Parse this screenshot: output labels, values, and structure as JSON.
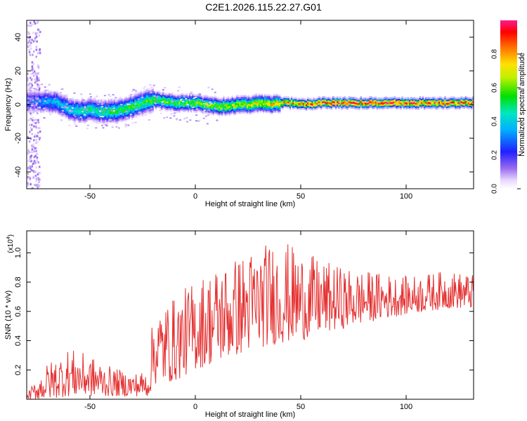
{
  "title": "C2E1.2026.115.22.27.G01",
  "chart_data": [
    {
      "type": "heatmap",
      "xlabel": "Height of straight line (km)",
      "ylabel": "Frequency (Hz)",
      "xlim": [
        -80,
        132
      ],
      "ylim": [
        -50,
        50
      ],
      "xticks": [
        -50,
        0,
        50,
        100
      ],
      "yticks": [
        -40,
        -20,
        0,
        20,
        40
      ],
      "colorbar": {
        "label": "Normalized spectral amplitude",
        "range": [
          0,
          1
        ],
        "ticks": [
          "0.0",
          "0.2",
          "0.4",
          "0.6",
          "0.8"
        ],
        "colormap": "rainbow (white, violet, blue, cyan, green, yellow, orange, red, magenta)"
      },
      "ridge": {
        "description": "dominant frequency vs height",
        "points": [
          [
            -72,
            2
          ],
          [
            -65,
            1
          ],
          [
            -60,
            -3
          ],
          [
            -55,
            -4
          ],
          [
            -50,
            -3
          ],
          [
            -45,
            -4
          ],
          [
            -40,
            -4
          ],
          [
            -35,
            -3
          ],
          [
            -30,
            -1
          ],
          [
            -25,
            1
          ],
          [
            -20,
            3
          ],
          [
            -15,
            2
          ],
          [
            -10,
            1
          ],
          [
            -5,
            1
          ],
          [
            0,
            1
          ],
          [
            5,
            0
          ],
          [
            10,
            -1
          ],
          [
            15,
            -1
          ],
          [
            20,
            0
          ],
          [
            25,
            0
          ],
          [
            30,
            1
          ],
          [
            35,
            0
          ],
          [
            40,
            1
          ],
          [
            45,
            1
          ],
          [
            50,
            0
          ],
          [
            60,
            1
          ],
          [
            70,
            1
          ],
          [
            80,
            1
          ],
          [
            90,
            1
          ],
          [
            100,
            1
          ],
          [
            110,
            1
          ],
          [
            120,
            1
          ],
          [
            130,
            1
          ]
        ]
      },
      "amplitude_trend": {
        "description": "normalized amplitude along ridge",
        "points": [
          [
            -80,
            0.3
          ],
          [
            -60,
            0.45
          ],
          [
            -40,
            0.55
          ],
          [
            -20,
            0.6
          ],
          [
            0,
            0.65
          ],
          [
            20,
            0.7
          ],
          [
            40,
            0.8
          ],
          [
            60,
            0.95
          ],
          [
            80,
            1.0
          ],
          [
            100,
            0.95
          ],
          [
            132,
            0.95
          ]
        ]
      },
      "grid": false
    },
    {
      "type": "line",
      "xlabel": "Height of straight line (km)",
      "ylabel": "SNR (10 * v/v)",
      "y_multiplier": "(x10^4)",
      "y_multiplier_base": "(x10",
      "y_multiplier_exp": "4",
      "y_multiplier_close": ")",
      "xlim": [
        -80,
        132
      ],
      "ylim": [
        0,
        1.15
      ],
      "xticks": [
        -50,
        0,
        50,
        100
      ],
      "yticks": [
        0.2,
        0.4,
        0.6,
        0.8,
        1.0
      ],
      "color": "#e53030",
      "envelope": {
        "description": "approximate upper/lower envelope of noisy SNR trace",
        "x": [
          -80,
          -70,
          -60,
          -50,
          -40,
          -30,
          -22,
          -20,
          -10,
          0,
          10,
          20,
          30,
          40,
          50,
          60,
          70,
          80,
          90,
          100,
          110,
          120,
          132
        ],
        "upper": [
          0.04,
          0.25,
          0.35,
          0.3,
          0.22,
          0.18,
          0.2,
          0.62,
          0.7,
          0.82,
          0.92,
          0.98,
          1.05,
          1.1,
          1.02,
          0.95,
          0.9,
          0.88,
          0.86,
          0.84,
          0.86,
          0.88,
          0.85
        ],
        "lower": [
          0.0,
          0.0,
          0.02,
          0.02,
          0.02,
          0.02,
          0.02,
          0.1,
          0.12,
          0.2,
          0.25,
          0.3,
          0.35,
          0.38,
          0.4,
          0.45,
          0.48,
          0.52,
          0.55,
          0.58,
          0.6,
          0.62,
          0.62
        ]
      },
      "grid": false
    }
  ]
}
